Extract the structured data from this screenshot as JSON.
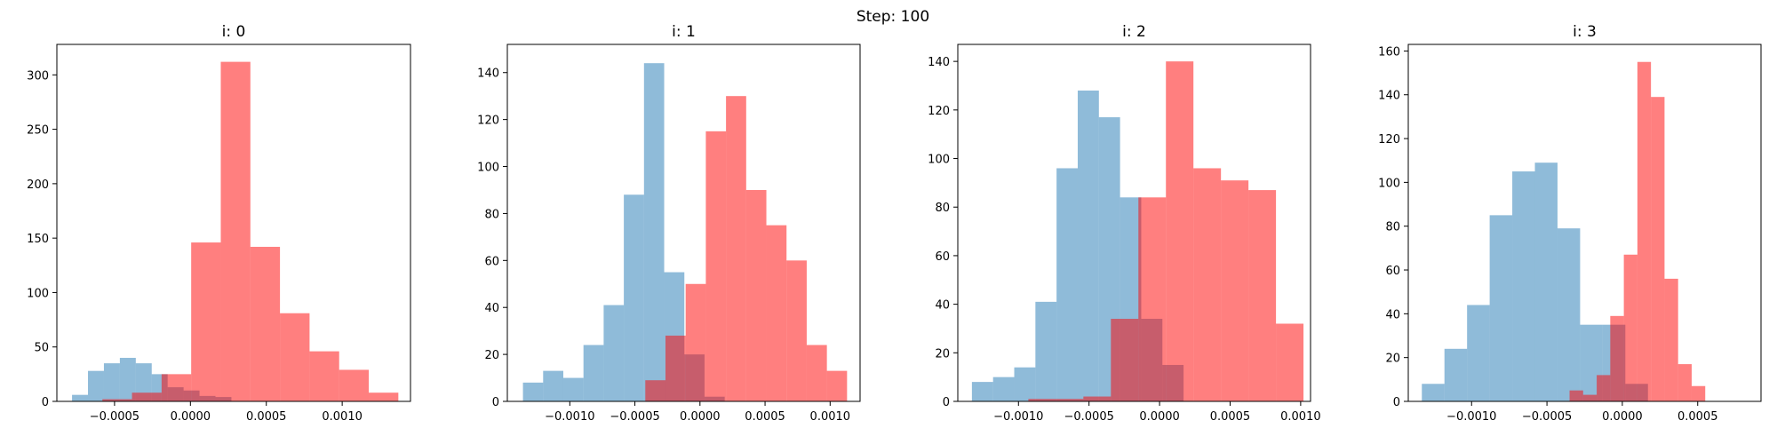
{
  "figure": {
    "title": "Step: 100",
    "colors": {
      "blue": "#1f77b4",
      "red": "#ff0000"
    },
    "alpha": 0.5
  },
  "chart_data": [
    {
      "type": "bar",
      "title": "i: 0",
      "xlim": [
        -0.00088,
        0.00145
      ],
      "ylim": [
        0,
        328
      ],
      "xticks": [
        -0.0005,
        0.0,
        0.0005,
        0.001
      ],
      "xtick_labels": [
        "−0.0005",
        "0.0000",
        "0.0005",
        "0.0010"
      ],
      "yticks": [
        0,
        50,
        100,
        150,
        200,
        250,
        300
      ],
      "ytick_labels": [
        "0",
        "50",
        "100",
        "150",
        "200",
        "250",
        "300"
      ],
      "series": [
        {
          "color": "blue",
          "edges": [
            -0.00078,
            -0.000675,
            -0.00057,
            -0.000465,
            -0.00036,
            -0.000255,
            -0.00015,
            -4.5e-05,
            6e-05,
            0.000165,
            0.00027
          ],
          "values": [
            6,
            28,
            35,
            40,
            35,
            25,
            13,
            10,
            5,
            4
          ]
        },
        {
          "color": "red",
          "edges": [
            -0.00058,
            -0.000385,
            -0.00019,
            5e-06,
            0.0002,
            0.000395,
            0.00059,
            0.000785,
            0.00098,
            0.001175,
            0.00137
          ],
          "values": [
            2,
            8,
            25,
            146,
            312,
            142,
            81,
            46,
            29,
            8
          ]
        }
      ]
    },
    {
      "type": "bar",
      "title": "i: 1",
      "xlim": [
        -0.00148,
        0.00123
      ],
      "ylim": [
        0,
        152
      ],
      "xticks": [
        -0.001,
        -0.0005,
        0.0,
        0.0005,
        0.001
      ],
      "xtick_labels": [
        "−0.0010",
        "−0.0005",
        "0.0000",
        "0.0005",
        "0.0010"
      ],
      "yticks": [
        0,
        20,
        40,
        60,
        80,
        100,
        120,
        140
      ],
      "ytick_labels": [
        "0",
        "20",
        "40",
        "60",
        "80",
        "100",
        "120",
        "140"
      ],
      "series": [
        {
          "color": "blue",
          "edges": [
            -0.00136,
            -0.001205,
            -0.00105,
            -0.000895,
            -0.00074,
            -0.000585,
            -0.00043,
            -0.000275,
            -0.00012,
            3.5e-05,
            0.00019
          ],
          "values": [
            8,
            13,
            10,
            24,
            41,
            88,
            144,
            55,
            20,
            2
          ]
        },
        {
          "color": "red",
          "edges": [
            -0.00042,
            -0.000265,
            -0.00011,
            4.5e-05,
            0.0002,
            0.000355,
            0.00051,
            0.000665,
            0.00082,
            0.000975,
            0.00113
          ],
          "values": [
            9,
            28,
            50,
            115,
            130,
            90,
            75,
            60,
            24,
            13
          ]
        }
      ]
    },
    {
      "type": "bar",
      "title": "i: 2",
      "xlim": [
        -0.00143,
        0.00107
      ],
      "ylim": [
        0,
        147
      ],
      "xticks": [
        -0.001,
        -0.0005,
        0.0,
        0.0005,
        0.001
      ],
      "xtick_labels": [
        "−0.0010",
        "−0.0005",
        "0.0000",
        "0.0005",
        "0.0010"
      ],
      "yticks": [
        0,
        20,
        40,
        60,
        80,
        100,
        120,
        140
      ],
      "ytick_labels": [
        "0",
        "20",
        "40",
        "60",
        "80",
        "100",
        "120",
        "140"
      ],
      "series": [
        {
          "color": "blue",
          "edges": [
            -0.00133,
            -0.00118,
            -0.00103,
            -0.00088,
            -0.00073,
            -0.00058,
            -0.00043,
            -0.00028,
            -0.00013,
            2e-05,
            0.00017
          ],
          "values": [
            8,
            10,
            14,
            41,
            96,
            128,
            117,
            84,
            34,
            15
          ]
        },
        {
          "color": "red",
          "edges": [
            -0.00093,
            -0.000735,
            -0.00054,
            -0.000345,
            -0.00015,
            4.5e-05,
            0.00024,
            0.000435,
            0.00063,
            0.000825,
            0.00102
          ],
          "values": [
            1,
            1,
            2,
            34,
            84,
            140,
            96,
            91,
            87,
            32
          ]
        }
      ]
    },
    {
      "type": "bar",
      "title": "i: 3",
      "xlim": [
        -0.00142,
        0.00092
      ],
      "ylim": [
        0,
        163
      ],
      "xticks": [
        -0.001,
        -0.0005,
        0.0,
        0.0005
      ],
      "xtick_labels": [
        "−0.0010",
        "−0.0005",
        "0.0000",
        "0.0005"
      ],
      "yticks": [
        0,
        20,
        40,
        60,
        80,
        100,
        120,
        140,
        160
      ],
      "ytick_labels": [
        "0",
        "20",
        "40",
        "60",
        "80",
        "100",
        "120",
        "140",
        "160"
      ],
      "series": [
        {
          "color": "blue",
          "edges": [
            -0.00133,
            -0.00118,
            -0.00103,
            -0.00088,
            -0.00073,
            -0.00058,
            -0.00043,
            -0.00028,
            -0.00013,
            2e-05,
            0.00017
          ],
          "values": [
            8,
            24,
            44,
            85,
            105,
            109,
            79,
            35,
            35,
            8
          ]
        },
        {
          "color": "red",
          "edges": [
            -0.00035,
            -0.00026,
            -0.00017,
            -8e-05,
            1e-05,
            0.0001,
            0.00019,
            0.00028,
            0.00037,
            0.00046,
            0.00055
          ],
          "values": [
            5,
            3,
            12,
            39,
            67,
            155,
            139,
            56,
            17,
            7
          ]
        }
      ]
    }
  ]
}
